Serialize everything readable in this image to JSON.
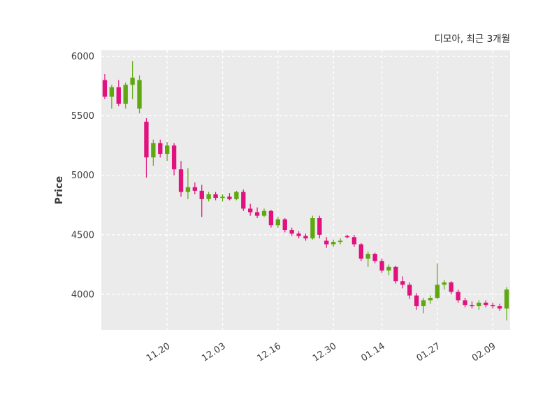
{
  "chart_data": {
    "type": "candlestick",
    "title": "디모아, 최근 3개월",
    "ylabel": "Price",
    "ylim": [
      3700,
      6050
    ],
    "yticks": [
      4000,
      4500,
      5000,
      5500,
      6000
    ],
    "xticks": [
      {
        "index": 9,
        "label": "11.20"
      },
      {
        "index": 17,
        "label": "12.03"
      },
      {
        "index": 25,
        "label": "12.16"
      },
      {
        "index": 33,
        "label": "12.30"
      },
      {
        "index": 40,
        "label": "01.14"
      },
      {
        "index": 48,
        "label": "01.27"
      },
      {
        "index": 56,
        "label": "02.09"
      }
    ],
    "colors": {
      "up": "#5fa80f",
      "down": "#e0137e",
      "plot_bg": "#ebebeb",
      "grid": "#ffffff",
      "text": "#3a3a3a"
    },
    "grid": "dashed",
    "legend": "none",
    "candles": [
      [
        5800,
        5850,
        5640,
        5660
      ],
      [
        5660,
        5760,
        5560,
        5740
      ],
      [
        5740,
        5800,
        5580,
        5600
      ],
      [
        5600,
        5780,
        5560,
        5760
      ],
      [
        5760,
        5960,
        5640,
        5820
      ],
      [
        5560,
        5840,
        5520,
        5800
      ],
      [
        5450,
        5480,
        4980,
        5150
      ],
      [
        5150,
        5300,
        5080,
        5270
      ],
      [
        5270,
        5300,
        5150,
        5180
      ],
      [
        5180,
        5280,
        5120,
        5250
      ],
      [
        5250,
        5270,
        5000,
        5050
      ],
      [
        5050,
        5120,
        4820,
        4860
      ],
      [
        4860,
        5060,
        4800,
        4900
      ],
      [
        4900,
        4940,
        4840,
        4870
      ],
      [
        4870,
        4920,
        4650,
        4800
      ],
      [
        4800,
        4860,
        4780,
        4840
      ],
      [
        4840,
        4860,
        4790,
        4810
      ],
      [
        4810,
        4840,
        4780,
        4820
      ],
      [
        4820,
        4850,
        4790,
        4800
      ],
      [
        4800,
        4870,
        4790,
        4860
      ],
      [
        4860,
        4880,
        4700,
        4720
      ],
      [
        4720,
        4760,
        4660,
        4690
      ],
      [
        4690,
        4730,
        4640,
        4660
      ],
      [
        4660,
        4720,
        4650,
        4700
      ],
      [
        4700,
        4710,
        4560,
        4580
      ],
      [
        4580,
        4650,
        4560,
        4630
      ],
      [
        4630,
        4640,
        4520,
        4540
      ],
      [
        4540,
        4560,
        4490,
        4510
      ],
      [
        4510,
        4530,
        4470,
        4490
      ],
      [
        4490,
        4510,
        4450,
        4470
      ],
      [
        4470,
        4660,
        4460,
        4640
      ],
      [
        4640,
        4660,
        4470,
        4500
      ],
      [
        4450,
        4480,
        4390,
        4420
      ],
      [
        4420,
        4460,
        4400,
        4440
      ],
      [
        4440,
        4470,
        4420,
        4450
      ],
      [
        4490,
        4500,
        4470,
        4480
      ],
      [
        4480,
        4500,
        4400,
        4420
      ],
      [
        4420,
        4430,
        4280,
        4300
      ],
      [
        4300,
        4360,
        4230,
        4340
      ],
      [
        4340,
        4350,
        4260,
        4280
      ],
      [
        4280,
        4300,
        4180,
        4200
      ],
      [
        4200,
        4250,
        4160,
        4230
      ],
      [
        4230,
        4240,
        4090,
        4110
      ],
      [
        4110,
        4150,
        4050,
        4080
      ],
      [
        4080,
        4100,
        3960,
        3990
      ],
      [
        3990,
        4010,
        3870,
        3900
      ],
      [
        3900,
        3970,
        3840,
        3950
      ],
      [
        3950,
        3990,
        3920,
        3970
      ],
      [
        3970,
        4260,
        3960,
        4080
      ],
      [
        4080,
        4120,
        4040,
        4100
      ],
      [
        4100,
        4110,
        4000,
        4020
      ],
      [
        4020,
        4040,
        3930,
        3950
      ],
      [
        3950,
        3970,
        3890,
        3910
      ],
      [
        3910,
        3940,
        3880,
        3900
      ],
      [
        3900,
        3950,
        3870,
        3930
      ],
      [
        3930,
        3950,
        3890,
        3910
      ],
      [
        3910,
        3930,
        3880,
        3900
      ],
      [
        3900,
        3920,
        3860,
        3880
      ],
      [
        3880,
        4060,
        3780,
        4040
      ]
    ]
  }
}
